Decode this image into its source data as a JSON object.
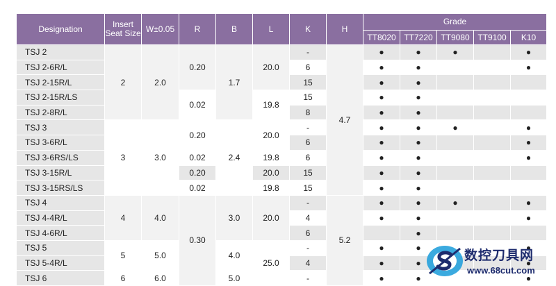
{
  "header": {
    "designation": "Designation",
    "insert_seat_size": "Insert Seat Size",
    "w": "W±0.05",
    "r": "R",
    "b": "B",
    "l": "L",
    "k": "K",
    "h": "H",
    "grade": "Grade",
    "grades": [
      "TT8020",
      "TT7220",
      "TT9080",
      "TT9100",
      "K10"
    ]
  },
  "rows": [
    {
      "designation": "TSJ 2",
      "k": "-",
      "grades": [
        "●",
        "●",
        "●",
        "",
        "●"
      ]
    },
    {
      "designation": "TSJ 2-6R/L",
      "k": "6",
      "grades": [
        "●",
        "●",
        "",
        "",
        "●"
      ]
    },
    {
      "designation": "TSJ 2-15R/L",
      "k": "15",
      "grades": [
        "●",
        "●",
        "",
        "",
        ""
      ]
    },
    {
      "designation": "TSJ 2-15R/LS",
      "k": "15",
      "grades": [
        "●",
        "●",
        "",
        "",
        ""
      ]
    },
    {
      "designation": "TSJ 2-8R/L",
      "k": "8",
      "grades": [
        "●",
        "●",
        "",
        "",
        ""
      ]
    },
    {
      "designation": "TSJ 3",
      "k": "-",
      "grades": [
        "●",
        "●",
        "●",
        "",
        "●"
      ]
    },
    {
      "designation": "TSJ 3-6R/L",
      "k": "6",
      "grades": [
        "●",
        "●",
        "",
        "",
        "●"
      ]
    },
    {
      "designation": "TSJ 3-6RS/LS",
      "k": "6",
      "grades": [
        "●",
        "●",
        "",
        "",
        "●"
      ]
    },
    {
      "designation": "TSJ 3-15R/L",
      "k": "15",
      "grades": [
        "●",
        "●",
        "",
        "",
        ""
      ]
    },
    {
      "designation": "TSJ 3-15RS/LS",
      "k": "15",
      "grades": [
        "●",
        "●",
        "",
        "",
        ""
      ]
    },
    {
      "designation": "TSJ 4",
      "k": "-",
      "grades": [
        "●",
        "●",
        "●",
        "",
        "●"
      ]
    },
    {
      "designation": "TSJ 4-4R/L",
      "k": "4",
      "grades": [
        "●",
        "●",
        "",
        "",
        "●"
      ]
    },
    {
      "designation": "TSJ 4-6R/L",
      "k": "6",
      "grades": [
        "",
        "●",
        "",
        "",
        ""
      ]
    },
    {
      "designation": "TSJ 5",
      "k": "-",
      "grades": [
        "●",
        "●",
        "",
        "",
        "●"
      ]
    },
    {
      "designation": "TSJ 5-4R/L",
      "k": "4",
      "grades": [
        "●",
        "●",
        "",
        "",
        "●"
      ]
    },
    {
      "designation": "TSJ 6",
      "k": "-",
      "grades": [
        "●",
        "●",
        "",
        "",
        "●"
      ]
    }
  ],
  "merged": {
    "size_2": "2",
    "w_2": "2.0",
    "size_3": "3",
    "w_3": "3.0",
    "size_4": "4",
    "w_4": "4.0",
    "size_5": "5",
    "w_5": "5.0",
    "size_6": "6",
    "w_6": "6.0",
    "r_a": "0.20",
    "r_b": "0.02",
    "r_c": "0.20",
    "r_d": "0.02",
    "r_e": "0.20",
    "r_f": "0.02",
    "r_g": "0.30",
    "b_a": "1.7",
    "b_b": "2.4",
    "b_c": "3.0",
    "b_d": "4.0",
    "b_e": "5.0",
    "l_a": "20.0",
    "l_b": "19.8",
    "l_c": "20.0",
    "l_d": "19.8",
    "l_e": "20.0",
    "l_f": "19.8",
    "l_g": "20.0",
    "l_h": "25.0",
    "h_a": "4.7",
    "h_b": "5.2"
  },
  "watermark": {
    "chinese": "数控刀具网",
    "url": "www.68cut.com",
    "logo_letter": "S"
  },
  "colors": {
    "header_bg": "#8a6fa0",
    "row_shade": "#e6e6e6",
    "watermark_blue": "#1e2c6e",
    "logo_cyan": "#2aa3dc"
  }
}
